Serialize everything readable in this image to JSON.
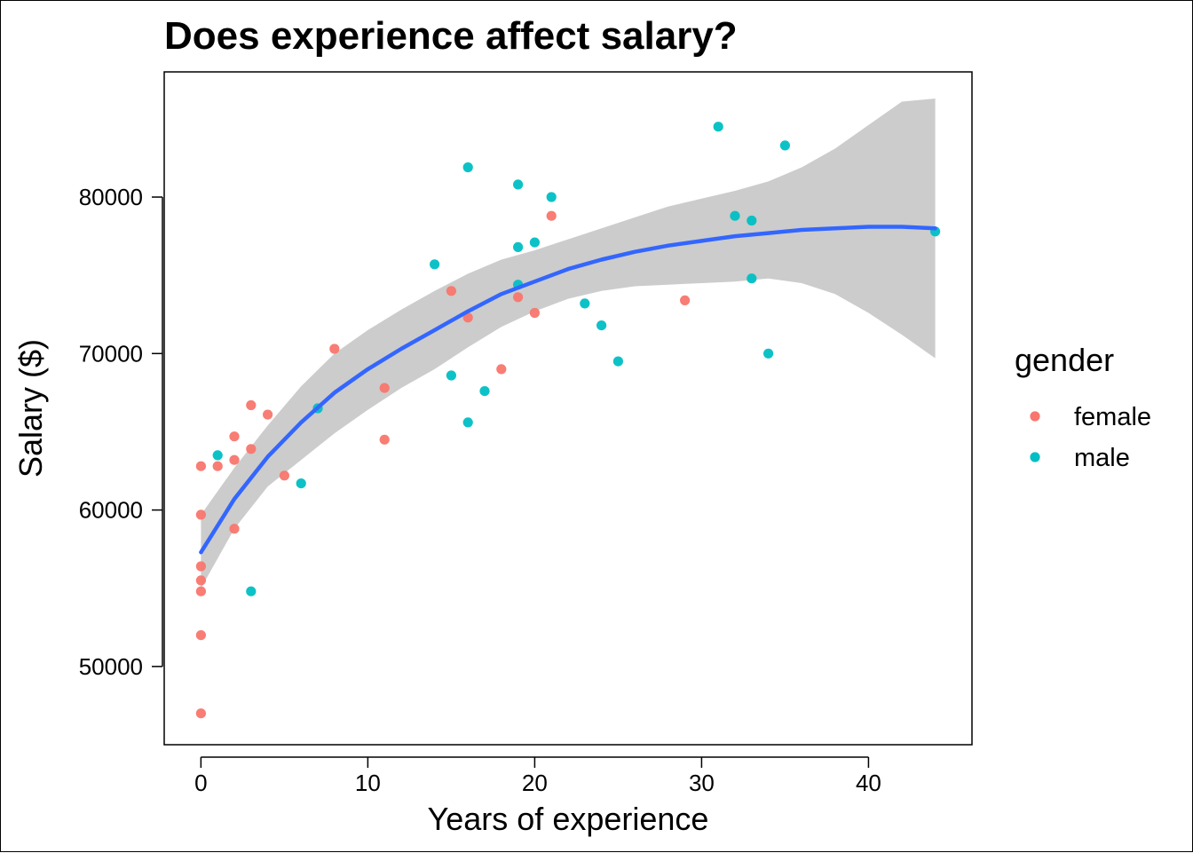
{
  "chart_data": {
    "type": "scatter",
    "title": "Does experience affect salary?",
    "xlabel": "Years of experience",
    "ylabel": "Salary ($)",
    "xlim": [
      -2.2,
      46.2
    ],
    "ylim": [
      45000,
      88000
    ],
    "x_ticks": [
      "0",
      "10",
      "20",
      "30",
      "40"
    ],
    "y_ticks": [
      "50000",
      "60000",
      "70000",
      "80000"
    ],
    "grid": false,
    "legend": {
      "title": "gender",
      "placement": "right",
      "entries": [
        {
          "label": "female",
          "color": "#F8766D"
        },
        {
          "label": "male",
          "color": "#00BFC4"
        }
      ]
    },
    "series": [
      {
        "name": "female",
        "color": "#F8766D",
        "points": [
          [
            0,
            62800
          ],
          [
            0,
            59700
          ],
          [
            0,
            56400
          ],
          [
            0,
            55500
          ],
          [
            0,
            54800
          ],
          [
            0,
            52000
          ],
          [
            0,
            47000
          ],
          [
            1,
            62800
          ],
          [
            2,
            64700
          ],
          [
            2,
            63200
          ],
          [
            2,
            58800
          ],
          [
            3,
            66700
          ],
          [
            3,
            63900
          ],
          [
            4,
            66100
          ],
          [
            5,
            62200
          ],
          [
            8,
            70300
          ],
          [
            11,
            67800
          ],
          [
            11,
            64500
          ],
          [
            15,
            74000
          ],
          [
            16,
            72300
          ],
          [
            18,
            69000
          ],
          [
            19,
            73600
          ],
          [
            20,
            72600
          ],
          [
            21,
            78800
          ],
          [
            29,
            73400
          ]
        ]
      },
      {
        "name": "male",
        "color": "#00BFC4",
        "points": [
          [
            1,
            63500
          ],
          [
            3,
            54800
          ],
          [
            6,
            61700
          ],
          [
            7,
            66500
          ],
          [
            14,
            75700
          ],
          [
            15,
            68600
          ],
          [
            16,
            81900
          ],
          [
            16,
            65600
          ],
          [
            17,
            67600
          ],
          [
            19,
            80800
          ],
          [
            19,
            76800
          ],
          [
            19,
            74400
          ],
          [
            20,
            77100
          ],
          [
            21,
            80000
          ],
          [
            23,
            73200
          ],
          [
            24,
            71800
          ],
          [
            25,
            69500
          ],
          [
            31,
            84500
          ],
          [
            32,
            78800
          ],
          [
            33,
            78500
          ],
          [
            33,
            74800
          ],
          [
            34,
            70000
          ],
          [
            35,
            83300
          ],
          [
            44,
            77800
          ]
        ]
      }
    ],
    "smooth": {
      "color": "#3366FF",
      "band_color": "#cccccc",
      "x": [
        0,
        2,
        4,
        6,
        8,
        10,
        12,
        14,
        16,
        18,
        20,
        22,
        24,
        26,
        28,
        30,
        32,
        34,
        36,
        38,
        40,
        42,
        44
      ],
      "y": [
        57300,
        60700,
        63400,
        65600,
        67500,
        69000,
        70300,
        71500,
        72700,
        73800,
        74600,
        75400,
        76000,
        76500,
        76900,
        77200,
        77500,
        77700,
        77900,
        78000,
        78100,
        78100,
        78000
      ],
      "lower": [
        55000,
        58800,
        61500,
        63200,
        64900,
        66400,
        67800,
        69000,
        70400,
        71700,
        72700,
        73500,
        74000,
        74300,
        74400,
        74500,
        74600,
        74800,
        74500,
        73800,
        72600,
        71200,
        69700
      ],
      "upper": [
        59700,
        62700,
        65400,
        67900,
        70000,
        71500,
        72800,
        74000,
        75100,
        76000,
        76600,
        77300,
        78000,
        78700,
        79400,
        79900,
        80400,
        81000,
        81900,
        83100,
        84600,
        86100,
        86300
      ]
    }
  }
}
